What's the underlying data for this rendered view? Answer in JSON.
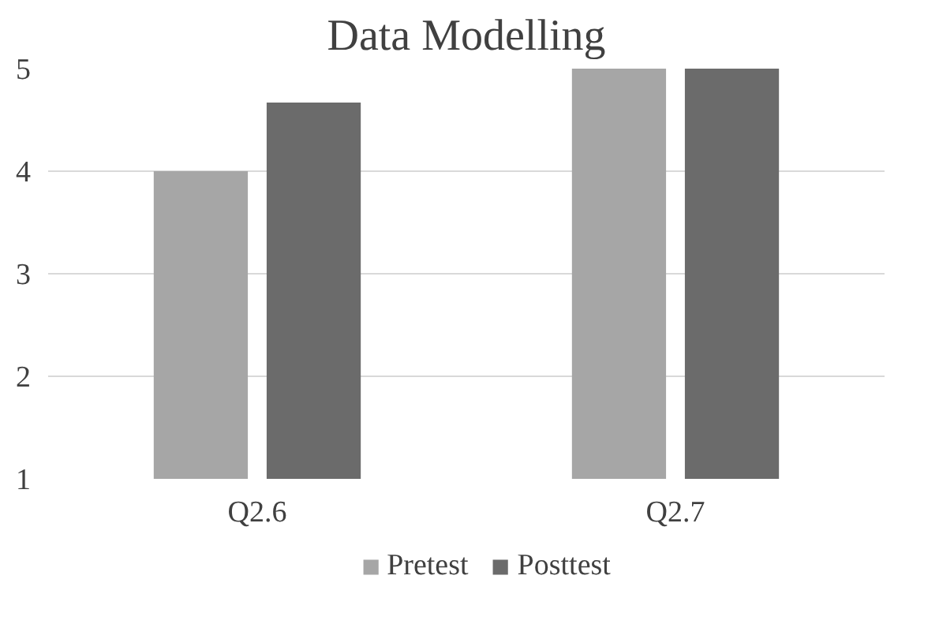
{
  "chart_data": {
    "type": "bar",
    "title": "Data Modelling",
    "categories": [
      "Q2.6",
      "Q2.7"
    ],
    "series": [
      {
        "name": "Pretest",
        "color": "#a6a6a6",
        "values": [
          4,
          5
        ]
      },
      {
        "name": "Posttest",
        "color": "#6b6b6b",
        "values": [
          4.67,
          5
        ]
      }
    ],
    "ylim": [
      1,
      5
    ],
    "yticks": [
      1,
      2,
      3,
      4,
      5
    ],
    "grid": "y",
    "legend": "bottom"
  }
}
